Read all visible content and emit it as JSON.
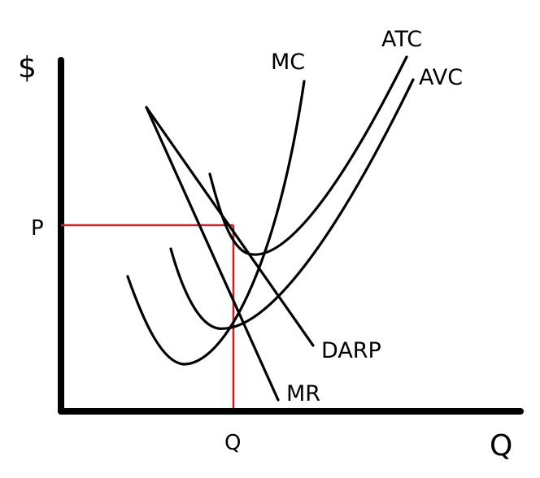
{
  "axes": {
    "y_label": "$",
    "x_label": "Q"
  },
  "markers": {
    "price_label": "P",
    "quantity_label": "Q"
  },
  "curves": {
    "mc": "MC",
    "atc": "ATC",
    "avc": "AVC",
    "darp": "DARP",
    "mr": "MR"
  },
  "colors": {
    "curve": "#000000",
    "guide": "#c0282d"
  }
}
